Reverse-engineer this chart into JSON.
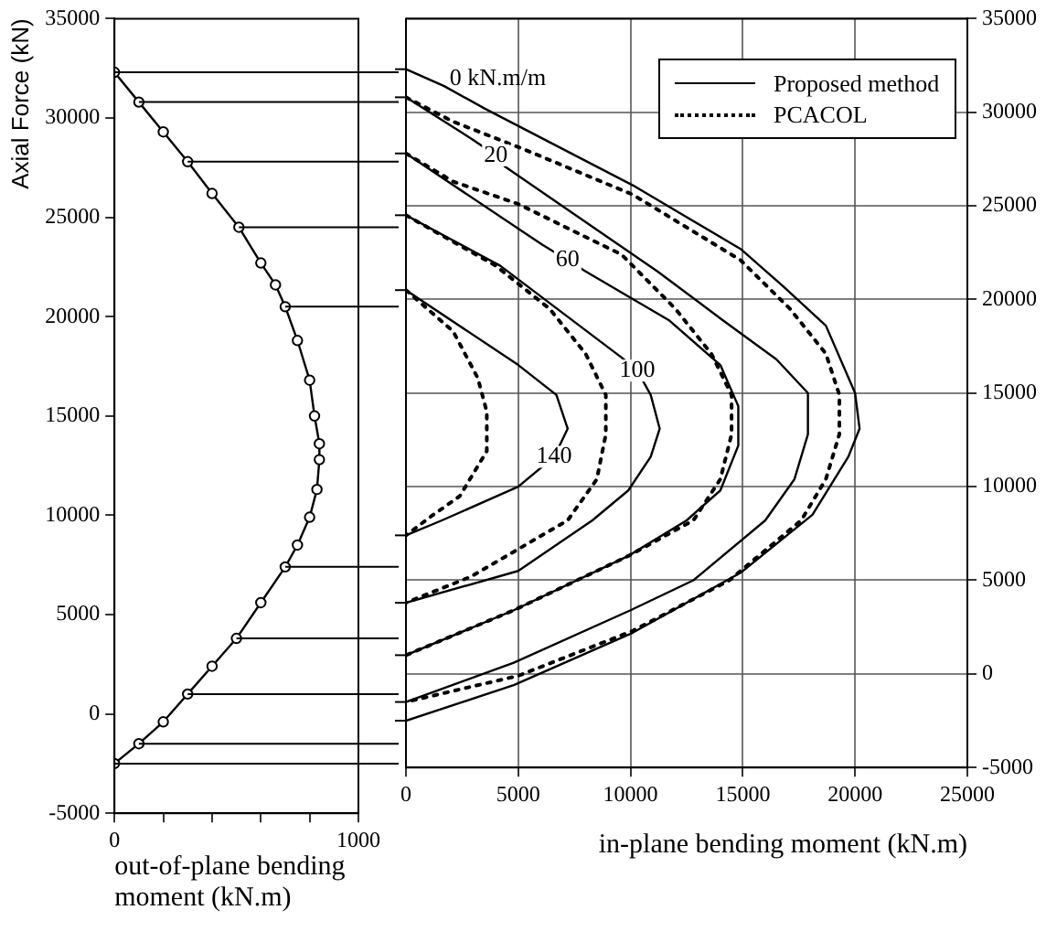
{
  "chart_data": [
    {
      "type": "line",
      "ylabel": "Axial Force (kN)",
      "xlabel": "out-of-plane bending moment (kN.m)",
      "xlim": [
        0,
        1000
      ],
      "xticks": [
        0,
        {
          "value": 200,
          "label": null
        },
        {
          "value": 400,
          "label": null
        },
        {
          "value": 600,
          "label": null
        },
        {
          "value": 800,
          "label": null
        },
        1000
      ],
      "ylim": [
        -5000,
        35000
      ],
      "yticks": [
        -5000,
        0,
        5000,
        10000,
        15000,
        20000,
        25000,
        30000,
        35000
      ],
      "grid": false,
      "marker": "circle",
      "line_style": "solid",
      "series": [
        {
          "color": "#000000",
          "x": [
            0,
            100,
            200,
            300,
            400,
            510,
            600,
            660,
            700,
            750,
            800,
            820,
            840,
            840,
            830,
            800,
            750,
            700,
            600,
            500,
            400,
            300,
            200,
            100,
            0
          ],
          "values": [
            32300,
            30800,
            29300,
            27800,
            26200,
            24500,
            22700,
            21600,
            20500,
            18800,
            16800,
            15000,
            13600,
            12800,
            11300,
            9900,
            8500,
            7400,
            5600,
            3800,
            2400,
            1000,
            -400,
            -1500,
            -2500
          ]
        }
      ],
      "ref_lines": [
        {
          "axis": "y",
          "value": 32300
        },
        {
          "axis": "y",
          "value": 30800
        },
        {
          "axis": "y",
          "value": 27800
        },
        {
          "axis": "y",
          "value": 24500
        },
        {
          "axis": "y",
          "value": 20500
        },
        {
          "axis": "y",
          "value": 7400
        },
        {
          "axis": "y",
          "value": 3800
        },
        {
          "axis": "y",
          "value": 1000
        },
        {
          "axis": "y",
          "value": -1500
        },
        {
          "axis": "y",
          "value": -2500
        }
      ]
    },
    {
      "type": "line",
      "xlabel": "in-plane bending moment (kN.m)",
      "xlim": [
        0,
        25000
      ],
      "xticks": [
        0,
        5000,
        10000,
        15000,
        20000,
        25000
      ],
      "ylim": [
        -5000,
        35000
      ],
      "yticks": [
        -5000,
        0,
        5000,
        10000,
        15000,
        20000,
        25000,
        30000,
        35000
      ],
      "grid": true,
      "legend": "top right",
      "marker": "none",
      "series": [
        {
          "name": "Proposed method",
          "color": "#000000",
          "line_style": "solid",
          "x": [
            0,
            1700,
            3500,
            10100,
            14900,
            16800,
            18700,
            20000,
            20200,
            19700,
            18100,
            14900,
            10100,
            4800,
            0
          ],
          "values": [
            32300,
            31400,
            30200,
            26100,
            22700,
            20700,
            18600,
            15000,
            13100,
            11600,
            8500,
            5400,
            2200,
            -600,
            -2500
          ]
        },
        {
          "color": "#000000",
          "line_style": "solid",
          "x": [
            0,
            2900,
            4000,
            4400,
            11200,
            14100,
            16500,
            17900,
            17900,
            17300,
            16000,
            12800,
            10000,
            4800,
            0
          ],
          "values": [
            30800,
            28600,
            27700,
            27100,
            21500,
            18900,
            16800,
            15000,
            12800,
            10400,
            8200,
            5000,
            3400,
            600,
            -1500
          ]
        },
        {
          "color": "#000000",
          "line_style": "solid",
          "x": [
            0,
            6100,
            7200,
            8000,
            11700,
            14000,
            14800,
            14800,
            14000,
            12500,
            9900,
            4800,
            0
          ],
          "values": [
            27800,
            22900,
            22100,
            21500,
            18900,
            16500,
            14300,
            12200,
            9800,
            8200,
            6300,
            3400,
            1000
          ]
        },
        {
          "color": "#000000",
          "line_style": "solid",
          "x": [
            0,
            4200,
            9600,
            10300,
            10900,
            11300,
            10900,
            9900,
            8300,
            5000,
            0
          ],
          "values": [
            24500,
            21800,
            16900,
            16200,
            14900,
            13100,
            11600,
            9800,
            8200,
            5500,
            3800
          ]
        },
        {
          "color": "#000000",
          "line_style": "solid",
          "x": [
            0,
            5000,
            6700,
            7200,
            6600,
            5000,
            1600,
            0
          ],
          "values": [
            20500,
            16500,
            14900,
            13100,
            11600,
            10000,
            8200,
            7400
          ]
        },
        {
          "name": "PCACOL",
          "color": "#000000",
          "line_style": "dotted",
          "x": [
            0,
            2100,
            5300,
            10100,
            14900,
            17100,
            18700,
            19300,
            19300,
            18700,
            17600,
            14400,
            10100,
            5000,
            0
          ],
          "values": [
            30800,
            29500,
            28000,
            25600,
            22100,
            19500,
            17100,
            14900,
            12800,
            10400,
            8200,
            5000,
            2300,
            -100,
            -1500
          ]
        },
        {
          "color": "#000000",
          "line_style": "dotted",
          "x": [
            0,
            2100,
            5000,
            9600,
            12000,
            13600,
            14500,
            14500,
            14000,
            12800,
            9900,
            4800,
            0
          ],
          "values": [
            27800,
            26300,
            25100,
            22400,
            19500,
            17100,
            14900,
            12800,
            10400,
            8200,
            6300,
            3400,
            1000
          ]
        },
        {
          "color": "#000000",
          "line_style": "dotted",
          "x": [
            0,
            4000,
            6400,
            8000,
            8900,
            8900,
            8500,
            7200,
            2900,
            0
          ],
          "values": [
            24500,
            21800,
            19500,
            17100,
            14900,
            12800,
            10400,
            8200,
            5200,
            3800
          ]
        },
        {
          "color": "#000000",
          "line_style": "dotted",
          "x": [
            0,
            2100,
            3200,
            3600,
            3600,
            2400,
            1100,
            0
          ],
          "values": [
            20500,
            18300,
            15800,
            14000,
            11900,
            9500,
            8400,
            7400
          ]
        }
      ],
      "annotations": [
        "0 kN.m/m",
        {
          "text": "20",
          "x": 4000,
          "y": 27700
        },
        {
          "text": "60",
          "x": 7200,
          "y": 22100
        },
        {
          "text": "100",
          "x": 10300,
          "y": 16200
        },
        {
          "text": "140",
          "x": 6600,
          "y": 11600
        }
      ]
    }
  ]
}
